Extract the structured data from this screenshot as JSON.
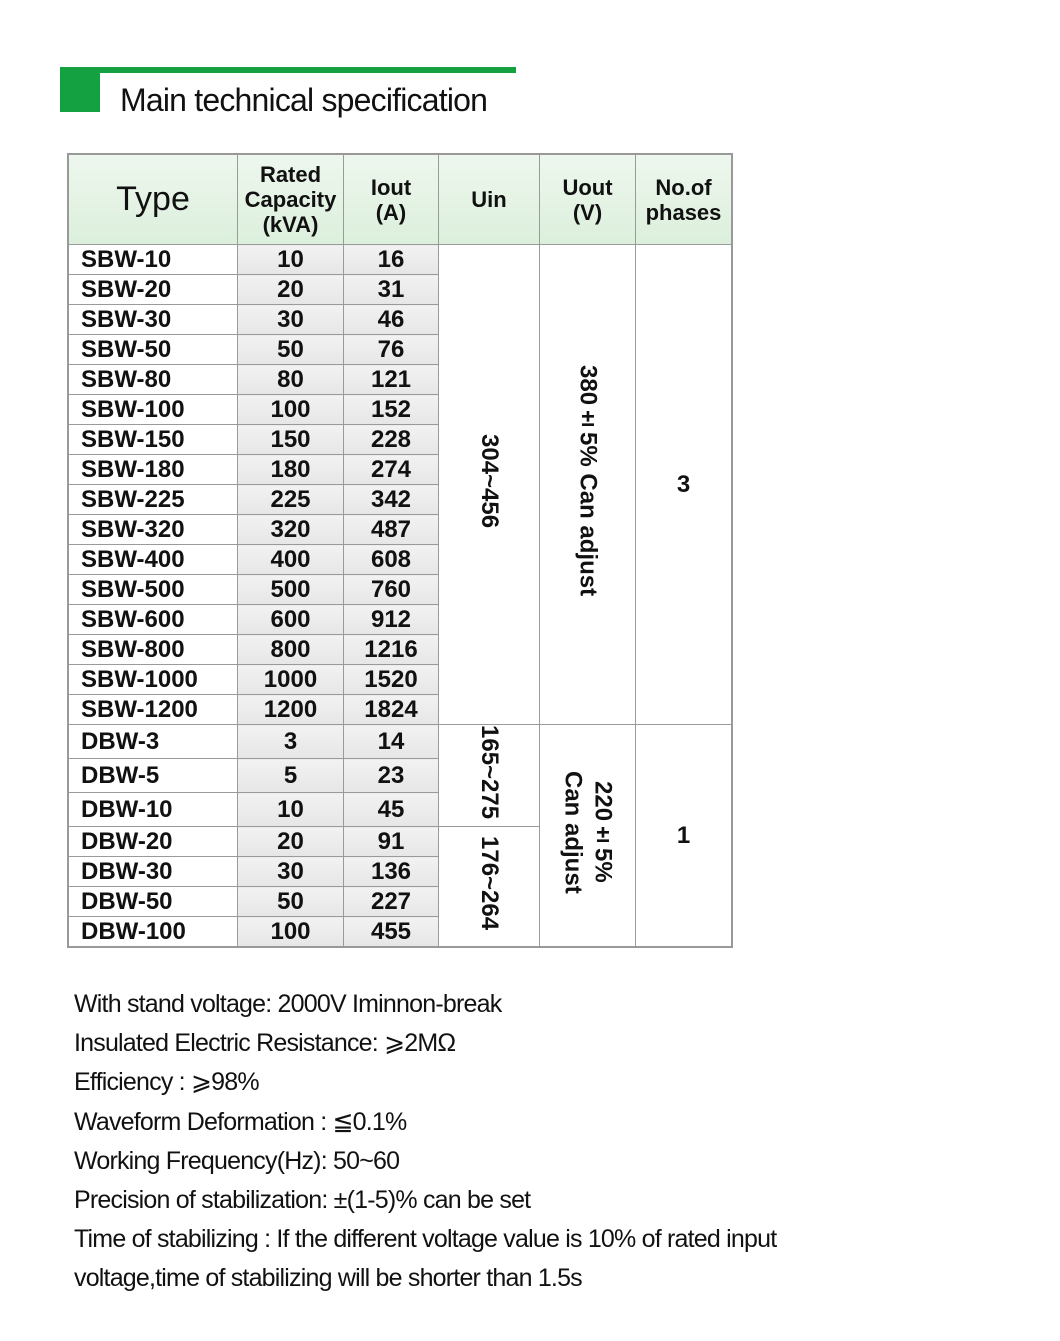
{
  "title": "Main technical specification",
  "headers": {
    "type": "Type",
    "capacity": [
      "Rated",
      "Capacity",
      "(kVA)"
    ],
    "iout": [
      "Iout",
      "(A)"
    ],
    "uin": "Uin",
    "uout": [
      "Uout",
      "(V)"
    ],
    "phases": [
      "No.of",
      "phases"
    ]
  },
  "rows": [
    [
      "SBW-10",
      "10",
      "16"
    ],
    [
      "SBW-20",
      "20",
      "31"
    ],
    [
      "SBW-30",
      "30",
      "46"
    ],
    [
      "SBW-50",
      "50",
      "76"
    ],
    [
      "SBW-80",
      "80",
      "121"
    ],
    [
      "SBW-100",
      "100",
      "152"
    ],
    [
      "SBW-150",
      "150",
      "228"
    ],
    [
      "SBW-180",
      "180",
      "274"
    ],
    [
      "SBW-225",
      "225",
      "342"
    ],
    [
      "SBW-320",
      "320",
      "487"
    ],
    [
      "SBW-400",
      "400",
      "608"
    ],
    [
      "SBW-500",
      "500",
      "760"
    ],
    [
      "SBW-600",
      "600",
      "912"
    ],
    [
      "SBW-800",
      "800",
      "1216"
    ],
    [
      "SBW-1000",
      "1000",
      "1520"
    ],
    [
      "SBW-1200",
      "1200",
      "1824"
    ],
    [
      "DBW-3",
      "3",
      "14"
    ],
    [
      "DBW-5",
      "5",
      "23"
    ],
    [
      "DBW-10",
      "10",
      "45"
    ],
    [
      "DBW-20",
      "20",
      "91"
    ],
    [
      "DBW-30",
      "30",
      "136"
    ],
    [
      "DBW-50",
      "50",
      "227"
    ],
    [
      "DBW-100",
      "100",
      "455"
    ]
  ],
  "merged": {
    "sbw_uin": "304~456",
    "sbw_uout": "380±5% Can adjust",
    "sbw_phases": "3",
    "dbw_uin_a": "165~275",
    "dbw_uin_b": "176~264",
    "dbw_uout": [
      "220±5%",
      "Can adjust"
    ],
    "dbw_phases": "1"
  },
  "notes": [
    "With stand voltage:  2000V Iminnon-break",
    "Insulated Electric Resistance:  ⩾2MΩ",
    "Efficiency :  ⩾98%",
    "Waveform Deformation :   ≦0.1%",
    "Working Frequency(Hz):  50~60",
    "Precision of stabilization:  ±(1-5)% can be set",
    "Time of stabilizing : If the different voltage value is 10% of rated input",
    "voltage,time of stabilizing will be shorter than 1.5s"
  ],
  "colors": {
    "accent": "#13a142",
    "header_bg": "#e4f2e4"
  }
}
